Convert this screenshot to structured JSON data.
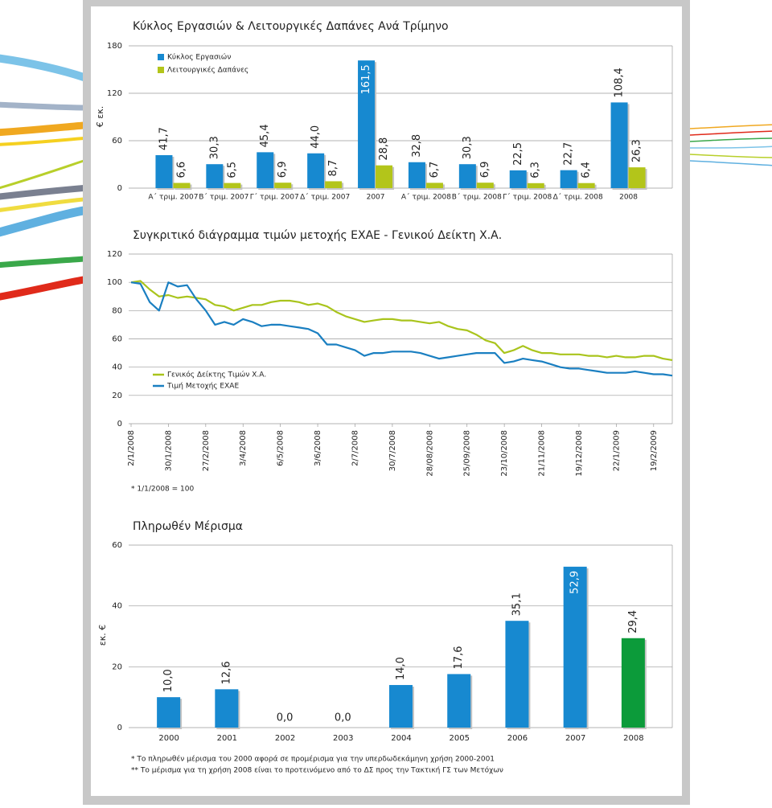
{
  "chart_data": [
    {
      "type": "bar",
      "title": "Κύκλος Εργασιών & Λειτουργικές Δαπάνες Ανά Τρίμηνο",
      "y_label": "€ εκ.",
      "categories": [
        "Α΄ τριμ. 2007",
        "Β΄ τριμ. 2007",
        "Γ΄ τριμ. 2007",
        "Δ΄ τριμ. 2007",
        "2007",
        "Α΄ τριμ. 2008",
        "Β΄ τριμ. 2008",
        "Γ΄ τριμ. 2008",
        "Δ΄ τριμ. 2008",
        "2008"
      ],
      "series": [
        {
          "name": "Κύκλος Εργασιών",
          "color": "#1789d0",
          "values": [
            41.7,
            30.3,
            45.4,
            44.0,
            161.5,
            32.8,
            30.3,
            22.5,
            22.7,
            108.4
          ],
          "value_labels": [
            "41,7",
            "30,3",
            "45,4",
            "44,0",
            "161,5",
            "32,8",
            "30,3",
            "22,5",
            "22,7",
            "108,4"
          ]
        },
        {
          "name": "Λειτουργικές Δαπάνες",
          "color": "#b3c51a",
          "values": [
            6.6,
            6.5,
            6.9,
            8.7,
            28.8,
            6.7,
            6.9,
            6.3,
            6.4,
            26.3
          ],
          "value_labels": [
            "6,6",
            "6,5",
            "6,9",
            "8,7",
            "28,8",
            "6,7",
            "6,9",
            "6,3",
            "6,4",
            "26,3"
          ]
        }
      ],
      "ylim": [
        0,
        180
      ],
      "yticks": [
        0,
        60,
        120,
        180
      ],
      "grid": true
    },
    {
      "type": "line",
      "title": "Συγκριτικό διάγραμμα τιμών μετοχής ΕΧΑΕ - Γενικού Δείκτη Χ.Α.",
      "categories": [
        "2/1/2008",
        null,
        null,
        null,
        "30/1/2008",
        null,
        null,
        null,
        "27/2/2008",
        null,
        null,
        null,
        "3/4/2008",
        null,
        null,
        null,
        "6/5/2008",
        null,
        null,
        null,
        "3/6/2008",
        null,
        null,
        null,
        "2/7/2008",
        null,
        null,
        null,
        "30/7/2008",
        null,
        null,
        null,
        "28/08/2008",
        null,
        null,
        null,
        "25/09/2008",
        null,
        null,
        null,
        "23/10/2008",
        null,
        null,
        null,
        "21/11/2008",
        null,
        null,
        null,
        "19/12/2008",
        null,
        null,
        null,
        "22/1/2009",
        null,
        null,
        null,
        "19/2/2009",
        null,
        null
      ],
      "series": [
        {
          "name": "Γενικός Δείκτης Τιμών Χ.Α.",
          "color": "#a9c41c",
          "values": [
            100,
            101,
            95,
            90,
            91,
            89,
            90,
            89,
            88,
            84,
            83,
            80,
            82,
            84,
            84,
            86,
            87,
            87,
            86,
            84,
            85,
            83,
            79,
            76,
            74,
            72,
            73,
            74,
            74,
            73,
            73,
            72,
            71,
            72,
            69,
            67,
            66,
            63,
            59,
            57,
            50,
            52,
            55,
            52,
            50,
            50,
            49,
            49,
            49,
            48,
            48,
            47,
            48,
            47,
            47,
            48,
            48,
            46,
            45
          ]
        },
        {
          "name": "Τιμή Μετοχής ΕΧΑΕ",
          "color": "#1a7fc1",
          "values": [
            100,
            99,
            86,
            80,
            100,
            97,
            98,
            88,
            80,
            70,
            72,
            70,
            74,
            72,
            69,
            70,
            70,
            69,
            68,
            67,
            64,
            56,
            56,
            54,
            52,
            48,
            50,
            50,
            51,
            51,
            51,
            50,
            48,
            46,
            47,
            48,
            49,
            50,
            50,
            50,
            43,
            44,
            46,
            45,
            44,
            42,
            40,
            39,
            39,
            38,
            37,
            36,
            36,
            36,
            37,
            36,
            35,
            35,
            34
          ]
        }
      ],
      "ylim": [
        0,
        120
      ],
      "yticks": [
        0,
        20,
        40,
        60,
        80,
        100,
        120
      ],
      "grid": true,
      "notes": [
        "*  1/1/2008 = 100"
      ]
    },
    {
      "type": "bar",
      "title": "Πληρωθέν Μέρισμα",
      "y_label": "εκ. €",
      "categories": [
        "2000",
        "2001",
        "2002",
        "2003",
        "2004",
        "2005",
        "2006",
        "2007",
        "2008"
      ],
      "series": [
        {
          "values": [
            10.0,
            12.6,
            0.0,
            0.0,
            14.0,
            17.6,
            35.1,
            52.9,
            29.4
          ],
          "value_labels": [
            "10,0",
            "12,6",
            "0,0",
            "0,0",
            "14,0",
            "17,6",
            "35,1",
            "52,9",
            "29,4"
          ],
          "colors": [
            "#1789d0",
            "#1789d0",
            "#1789d0",
            "#1789d0",
            "#1789d0",
            "#1789d0",
            "#1789d0",
            "#1789d0",
            "#0c9b3a"
          ]
        }
      ],
      "ylim": [
        0,
        60
      ],
      "yticks": [
        0,
        20,
        40,
        60
      ],
      "grid": true,
      "notes": [
        "* Το πληρωθέν μέρισμα του 2000 αφορά σε προμέρισμα για την υπερδωδεκάμηνη χρήση 2000-2001",
        "** Το μέρισμα για τη χρήση 2008 είναι το προτεινόμενο από το ΔΣ προς την Τακτική ΓΣ των Μετόχων"
      ]
    }
  ]
}
